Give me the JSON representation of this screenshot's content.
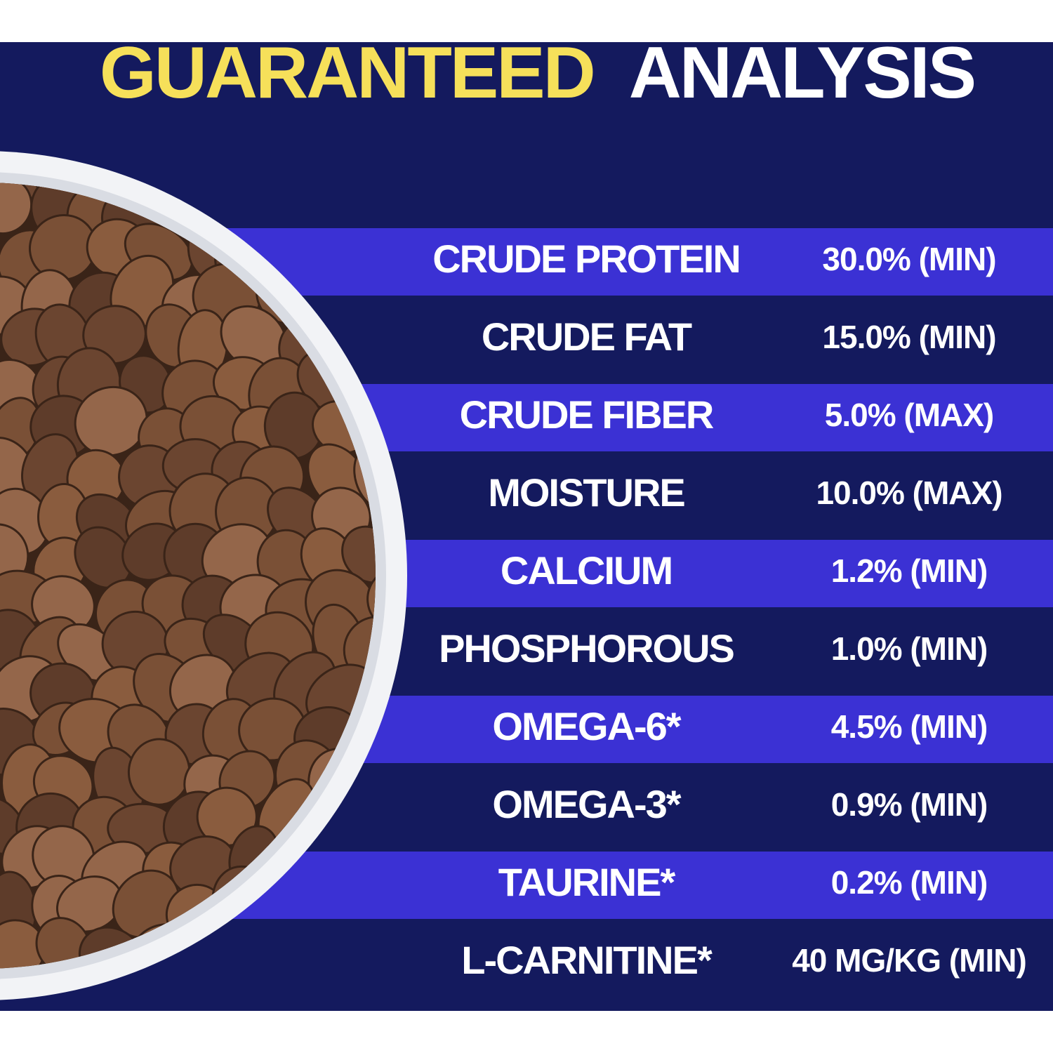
{
  "title": {
    "highlight": "GUARANTEED",
    "rest": "ANALYSIS"
  },
  "table": {
    "rows": [
      [
        "CRUDE PROTEIN",
        "30.0% (MIN)"
      ],
      [
        "CRUDE FAT",
        "15.0% (MIN)"
      ],
      [
        "CRUDE FIBER",
        "5.0% (MAX)"
      ],
      [
        "MOISTURE",
        "10.0% (MAX)"
      ],
      [
        "CALCIUM",
        "1.2% (MIN)"
      ],
      [
        "PHOSPHOROUS",
        "1.0% (MIN)"
      ],
      [
        "OMEGA-6*",
        "4.5% (MIN)"
      ],
      [
        "OMEGA-3*",
        "0.9% (MIN)"
      ],
      [
        "TAURINE*",
        "0.2% (MIN)"
      ],
      [
        "L-CARNITINE*",
        "40 MG/KG (MIN)"
      ]
    ]
  }
}
